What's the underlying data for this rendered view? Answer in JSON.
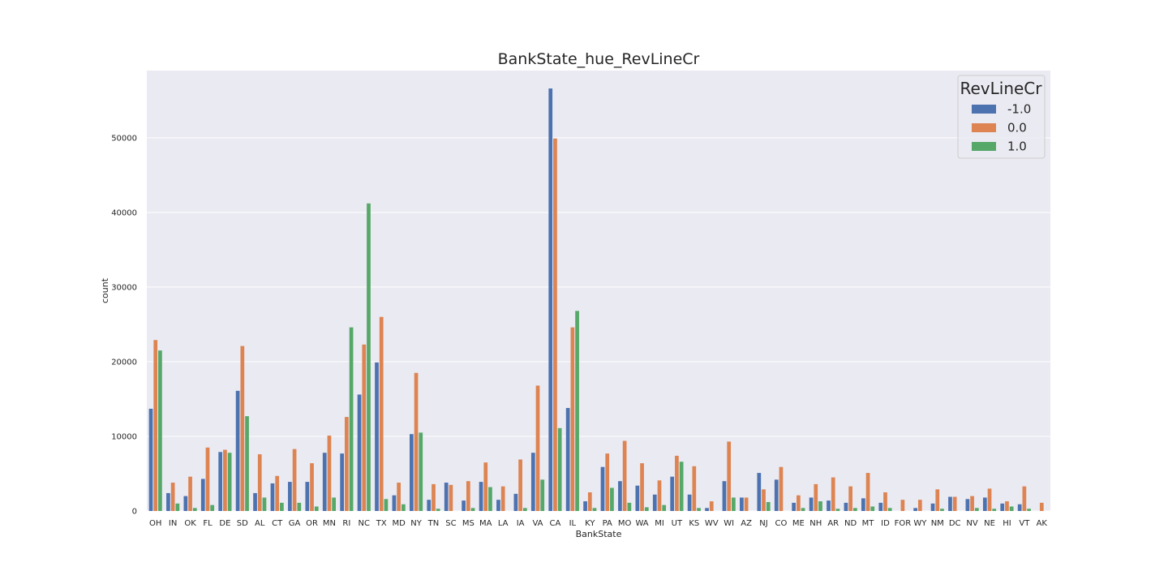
{
  "chart_data": {
    "type": "bar",
    "title": "BankState_hue_RevLineCr",
    "xlabel": "BankState",
    "ylabel": "count",
    "ylim": [
      0,
      59000
    ],
    "yticks": [
      0,
      10000,
      20000,
      30000,
      40000,
      50000
    ],
    "grid": true,
    "legend": {
      "title": "RevLineCr",
      "position": "top-right"
    },
    "categories": [
      "OH",
      "IN",
      "OK",
      "FL",
      "DE",
      "SD",
      "AL",
      "CT",
      "GA",
      "OR",
      "MN",
      "RI",
      "NC",
      "TX",
      "MD",
      "NY",
      "TN",
      "SC",
      "MS",
      "MA",
      "LA",
      "IA",
      "VA",
      "CA",
      "IL",
      "KY",
      "PA",
      "MO",
      "WA",
      "MI",
      "UT",
      "KS",
      "WV",
      "WI",
      "AZ",
      "NJ",
      "CO",
      "ME",
      "NH",
      "AR",
      "ND",
      "MT",
      "ID",
      "FOR",
      "WY",
      "NM",
      "DC",
      "NV",
      "NE",
      "HI",
      "VT",
      "AK"
    ],
    "series": [
      {
        "name": "-1.0",
        "color": "#4c72b0",
        "values": [
          13700,
          2400,
          2000,
          4300,
          7900,
          16100,
          2400,
          3700,
          3900,
          3900,
          7800,
          7700,
          15600,
          19900,
          2100,
          10300,
          1500,
          3800,
          1400,
          3900,
          1500,
          2300,
          7800,
          56600,
          13800,
          1300,
          5900,
          4000,
          3400,
          2200,
          4600,
          2200,
          400,
          4000,
          1800,
          5100,
          4200,
          1100,
          1800,
          1400,
          1100,
          1700,
          1100,
          0,
          400,
          1000,
          1900,
          1600,
          1800,
          1000,
          900,
          0
        ]
      },
      {
        "name": "0.0",
        "color": "#dd8452",
        "values": [
          22900,
          3800,
          4600,
          8500,
          8200,
          22100,
          7600,
          4700,
          8300,
          6400,
          10100,
          12600,
          22300,
          26000,
          3800,
          18500,
          3600,
          3500,
          4000,
          6500,
          3300,
          6900,
          16800,
          49900,
          24600,
          2500,
          7700,
          9400,
          6400,
          4100,
          7400,
          6000,
          1300,
          9300,
          1800,
          2900,
          5900,
          2100,
          3600,
          4500,
          3300,
          5100,
          2500,
          1500,
          1500,
          2900,
          1900,
          2000,
          3000,
          1300,
          3300,
          1100
        ]
      },
      {
        "name": "1.0",
        "color": "#55a868",
        "values": [
          21500,
          1000,
          400,
          800,
          7800,
          12700,
          1800,
          1100,
          1100,
          600,
          1800,
          24600,
          41200,
          1600,
          900,
          10500,
          300,
          0,
          400,
          3200,
          0,
          400,
          4200,
          11100,
          26800,
          400,
          3100,
          1100,
          500,
          800,
          6600,
          400,
          0,
          1800,
          0,
          1200,
          0,
          400,
          1300,
          300,
          400,
          600,
          400,
          0,
          0,
          300,
          0,
          400,
          300,
          600,
          300,
          0
        ]
      }
    ]
  }
}
